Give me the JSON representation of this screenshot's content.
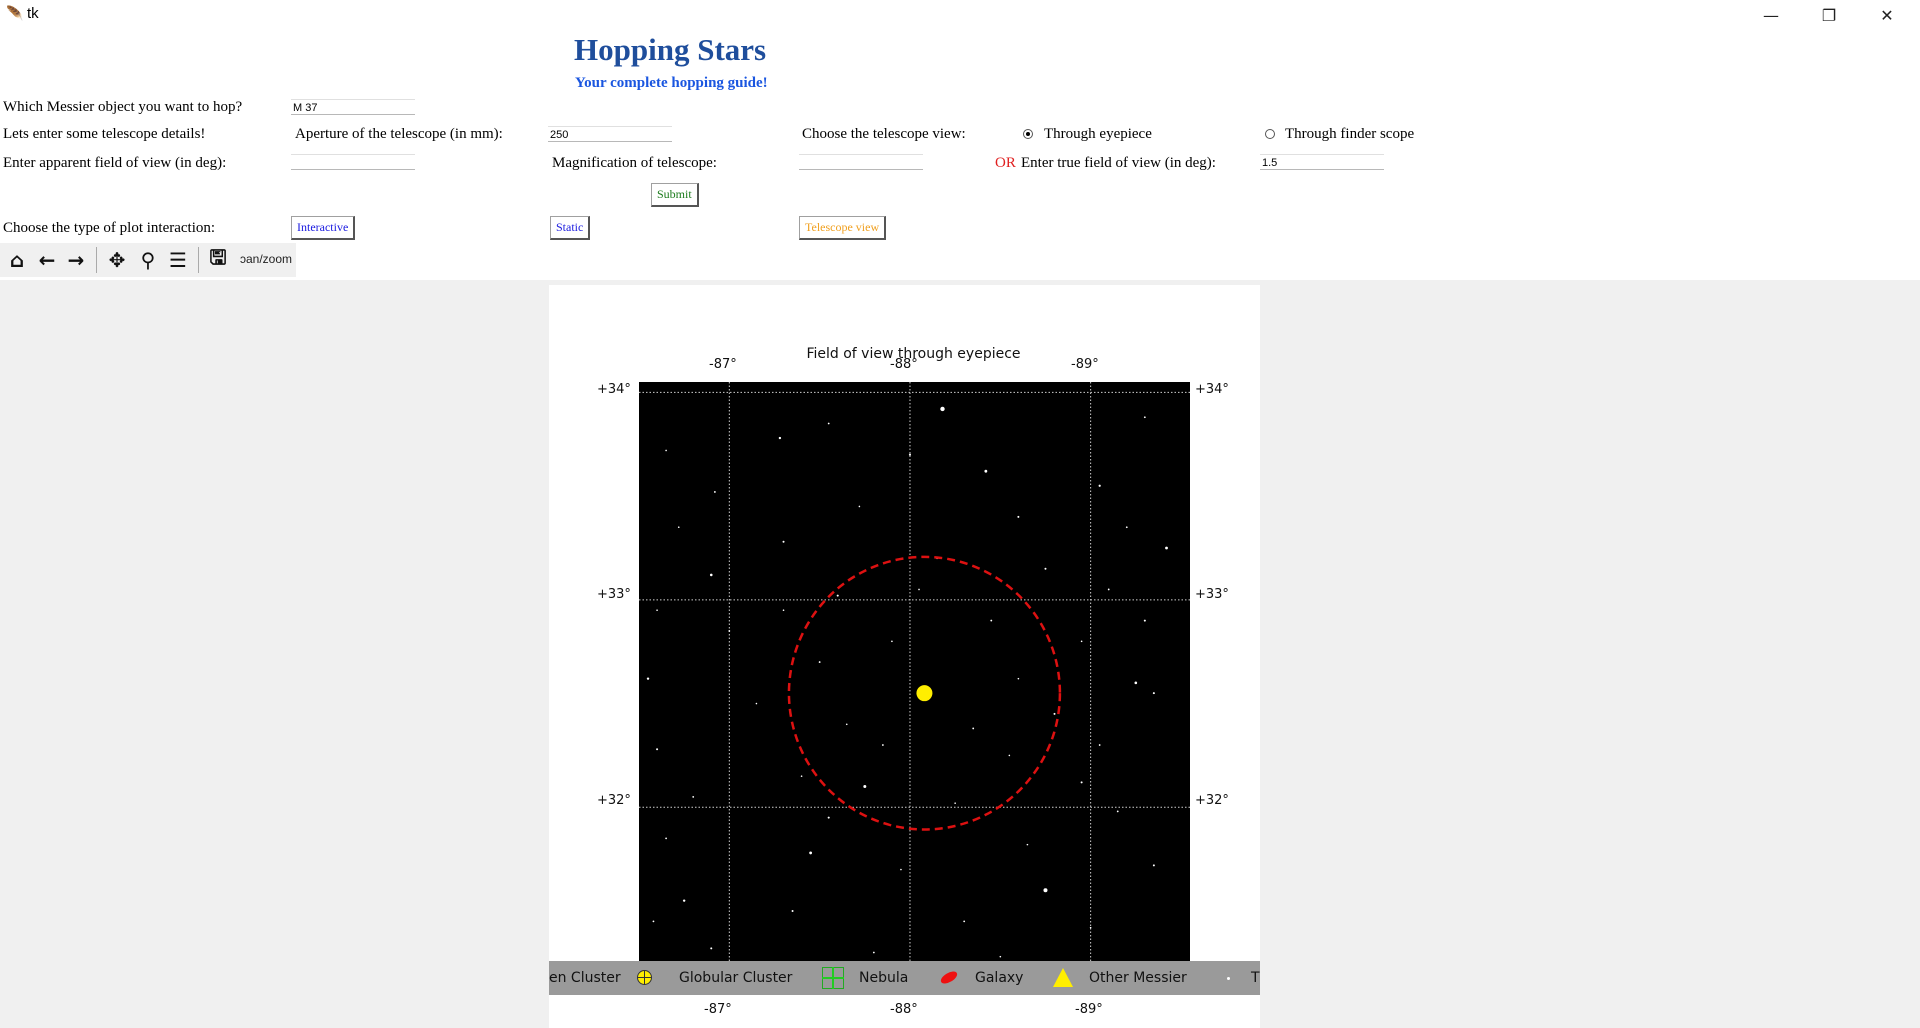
{
  "window": {
    "title": "tk"
  },
  "header": {
    "title": "Hopping Stars",
    "subtitle": "Your complete hopping guide!"
  },
  "form": {
    "messier_label": "Which Messier object you want to hop?",
    "messier_value": "M 37",
    "telescope_label": "Lets enter some telescope details!",
    "aperture_label": "Aperture of the telescope (in mm):",
    "aperture_value": "250",
    "view_label": "Choose the telescope view:",
    "view_options": [
      "Through eyepiece",
      "Through finder scope"
    ],
    "view_selected": "Through eyepiece",
    "apparent_fov_label": "Enter apparent field of view (in deg):",
    "apparent_fov_value": "",
    "magnification_label": "Magnification of telescope:",
    "magnification_value": "",
    "or_label": "OR",
    "true_fov_label": "Enter true field of view (in deg):",
    "true_fov_value": "1.5",
    "submit_label": "Submit",
    "interaction_label": "Choose the type of plot interaction:",
    "interactive_label": "Interactive",
    "static_label": "Static",
    "telescope_view_label": "Telescope view"
  },
  "toolbar": {
    "icons": [
      "home-icon",
      "back-icon",
      "forward-icon",
      "pan-icon",
      "zoom-icon",
      "configure-icon",
      "save-icon"
    ],
    "mode_message": "pan/zoom",
    "mode_message_visible": "ɔan/zoom"
  },
  "colors": {
    "title": "#1f4e9c",
    "subtitle": "#1a56e0",
    "submit": "#1a7a1a",
    "interactive": "#1a1ae0",
    "static": "#1a1ae0",
    "telescope_view": "#f0a020",
    "or": "#e02020",
    "fov_circle": "#dd1111",
    "target": "#ffee00"
  },
  "chart_data": {
    "type": "scatter",
    "title": "Field of view through eyepiece",
    "projection": "sky (RA inverted)",
    "x_ticks_top": [
      "-87°",
      "-88°",
      "-89°"
    ],
    "x_ticks_bottom": [
      "-87°",
      "-88°",
      "-89°"
    ],
    "y_ticks": [
      "+34°",
      "+33°",
      "+32°"
    ],
    "xlim": [
      -86.5,
      -89.55
    ],
    "ylim": [
      31.1,
      34.05
    ],
    "grid": true,
    "target": {
      "name": "M 37",
      "ra": -88.08,
      "dec": 32.55
    },
    "fov_circle": {
      "center": [
        -88.08,
        32.55
      ],
      "radius_deg": 0.75,
      "style": "dashed"
    },
    "legend": [
      "en Cluster",
      "Globular Cluster",
      "Nebula",
      "Galaxy",
      "Other Messier",
      "T"
    ],
    "stars": [
      [
        -88.18,
        33.92,
        2.2
      ],
      [
        -87.28,
        33.78,
        1.2
      ],
      [
        -87.55,
        33.85,
        0.9
      ],
      [
        -88.0,
        33.7,
        1.0
      ],
      [
        -88.42,
        33.62,
        1.4
      ],
      [
        -89.05,
        33.55,
        1.1
      ],
      [
        -89.3,
        33.88,
        0.9
      ],
      [
        -86.65,
        33.72,
        0.8
      ],
      [
        -86.92,
        33.52,
        0.9
      ],
      [
        -87.72,
        33.45,
        0.8
      ],
      [
        -88.6,
        33.4,
        1.0
      ],
      [
        -89.2,
        33.35,
        0.9
      ],
      [
        -89.42,
        33.25,
        1.4
      ],
      [
        -86.72,
        33.35,
        0.8
      ],
      [
        -87.3,
        33.28,
        1.0
      ],
      [
        -88.15,
        33.2,
        0.8
      ],
      [
        -88.75,
        33.15,
        1.0
      ],
      [
        -86.9,
        33.12,
        1.3
      ],
      [
        -89.1,
        33.05,
        0.9
      ],
      [
        -87.6,
        33.02,
        1.0
      ],
      [
        -86.6,
        32.95,
        0.8
      ],
      [
        -89.3,
        32.9,
        1.0
      ],
      [
        -87.0,
        32.85,
        0.9
      ],
      [
        -88.95,
        32.8,
        0.8
      ],
      [
        -86.55,
        32.62,
        1.2
      ],
      [
        -89.25,
        32.6,
        1.3
      ],
      [
        -89.35,
        32.55,
        1.0
      ],
      [
        -87.15,
        32.5,
        0.8
      ],
      [
        -88.35,
        32.38,
        0.9
      ],
      [
        -87.85,
        32.3,
        0.9
      ],
      [
        -86.6,
        32.28,
        1.0
      ],
      [
        -88.55,
        32.25,
        0.8
      ],
      [
        -89.05,
        32.3,
        0.9
      ],
      [
        -87.4,
        32.15,
        0.8
      ],
      [
        -87.75,
        32.1,
        1.5
      ],
      [
        -88.95,
        32.12,
        1.0
      ],
      [
        -86.8,
        32.05,
        0.9
      ],
      [
        -88.25,
        32.02,
        0.8
      ],
      [
        -87.55,
        31.95,
        1.0
      ],
      [
        -89.15,
        31.98,
        0.9
      ],
      [
        -86.65,
        31.85,
        0.9
      ],
      [
        -87.45,
        31.78,
        1.4
      ],
      [
        -88.65,
        31.82,
        0.8
      ],
      [
        -89.35,
        31.72,
        1.0
      ],
      [
        -87.95,
        31.7,
        0.8
      ],
      [
        -88.75,
        31.6,
        2.0
      ],
      [
        -86.75,
        31.55,
        1.2
      ],
      [
        -87.35,
        31.5,
        1.0
      ],
      [
        -88.3,
        31.45,
        0.9
      ],
      [
        -89.0,
        31.42,
        0.8
      ],
      [
        -86.9,
        31.32,
        1.0
      ],
      [
        -87.8,
        31.3,
        0.9
      ],
      [
        -88.5,
        31.28,
        0.8
      ],
      [
        -89.3,
        31.25,
        0.9
      ],
      [
        -87.1,
        31.2,
        0.8
      ],
      [
        -86.58,
        31.45,
        0.9
      ],
      [
        -88.05,
        33.05,
        0.8
      ],
      [
        -87.5,
        32.7,
        0.9
      ],
      [
        -88.6,
        32.62,
        0.8
      ],
      [
        -87.9,
        32.8,
        0.8
      ],
      [
        -88.45,
        32.9,
        0.9
      ],
      [
        -87.3,
        32.95,
        0.8
      ],
      [
        -88.8,
        32.45,
        1.0
      ],
      [
        -87.65,
        32.4,
        0.8
      ]
    ]
  }
}
